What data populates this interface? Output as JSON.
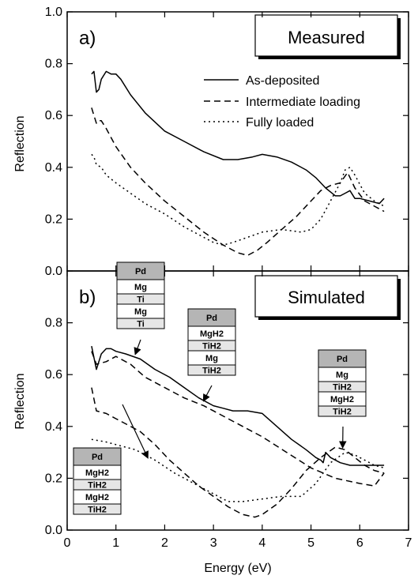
{
  "chart_data": [
    {
      "type": "line",
      "panel_label": "a)",
      "title": "Measured",
      "ylabel": "Reflection",
      "xlim": [
        0,
        7
      ],
      "ylim": [
        0.0,
        1.0
      ],
      "yticks": [
        0.0,
        0.2,
        0.4,
        0.6,
        0.8,
        1.0
      ],
      "ytick_labels": [
        "0.0",
        "0.2",
        "0.4",
        "0.6",
        "0.8",
        "1.0"
      ],
      "legend": [
        "As-deposited",
        "Intermediate loading",
        "Fully loaded"
      ],
      "series": [
        {
          "name": "As-deposited",
          "style": "solid",
          "x": [
            0.5,
            0.55,
            0.6,
            0.65,
            0.7,
            0.8,
            0.9,
            1.0,
            1.1,
            1.3,
            1.6,
            2.0,
            2.4,
            2.8,
            3.2,
            3.5,
            3.8,
            4.0,
            4.3,
            4.6,
            4.9,
            5.1,
            5.3,
            5.5,
            5.6,
            5.7,
            5.8,
            5.9,
            6.0,
            6.2,
            6.4,
            6.5
          ],
          "y": [
            0.76,
            0.77,
            0.69,
            0.7,
            0.74,
            0.77,
            0.76,
            0.76,
            0.74,
            0.68,
            0.61,
            0.54,
            0.5,
            0.46,
            0.43,
            0.43,
            0.44,
            0.45,
            0.44,
            0.42,
            0.39,
            0.36,
            0.32,
            0.29,
            0.29,
            0.3,
            0.31,
            0.28,
            0.28,
            0.27,
            0.26,
            0.28
          ]
        },
        {
          "name": "Intermediate loading",
          "style": "dashed",
          "x": [
            0.5,
            0.55,
            0.6,
            0.65,
            0.7,
            0.8,
            1.0,
            1.3,
            1.6,
            2.0,
            2.4,
            2.8,
            3.2,
            3.5,
            3.7,
            3.9,
            4.1,
            4.4,
            4.7,
            5.0,
            5.2,
            5.4,
            5.6,
            5.75,
            5.9,
            6.1,
            6.3,
            6.5
          ],
          "y": [
            0.63,
            0.6,
            0.57,
            0.58,
            0.58,
            0.55,
            0.48,
            0.4,
            0.34,
            0.27,
            0.21,
            0.15,
            0.1,
            0.07,
            0.06,
            0.08,
            0.11,
            0.16,
            0.21,
            0.27,
            0.31,
            0.33,
            0.34,
            0.38,
            0.32,
            0.27,
            0.25,
            0.23
          ]
        },
        {
          "name": "Fully loaded",
          "style": "dotted",
          "x": [
            0.5,
            0.55,
            0.6,
            0.7,
            0.8,
            1.0,
            1.3,
            1.6,
            2.0,
            2.4,
            2.8,
            3.0,
            3.2,
            3.4,
            3.7,
            4.0,
            4.4,
            4.8,
            5.0,
            5.2,
            5.4,
            5.6,
            5.7,
            5.8,
            5.9,
            6.1,
            6.3,
            6.5
          ],
          "y": [
            0.45,
            0.44,
            0.41,
            0.4,
            0.37,
            0.34,
            0.3,
            0.26,
            0.22,
            0.17,
            0.13,
            0.11,
            0.1,
            0.11,
            0.13,
            0.15,
            0.16,
            0.15,
            0.16,
            0.2,
            0.27,
            0.34,
            0.39,
            0.4,
            0.37,
            0.3,
            0.27,
            0.25
          ]
        }
      ]
    },
    {
      "type": "line",
      "panel_label": "b)",
      "title": "Simulated",
      "xlabel": "Energy (eV)",
      "ylabel": "Reflection",
      "xlim": [
        0,
        7
      ],
      "ylim": [
        0.0,
        1.0
      ],
      "xticks": [
        0,
        1,
        2,
        3,
        4,
        5,
        6,
        7
      ],
      "xtick_labels": [
        "0",
        "1",
        "2",
        "3",
        "4",
        "5",
        "6",
        "7"
      ],
      "yticks": [
        0.0,
        0.2,
        0.4,
        0.6,
        0.8
      ],
      "ytick_labels": [
        "0.0",
        "0.2",
        "0.4",
        "0.6",
        "0.8"
      ],
      "series": [
        {
          "name": "As-deposited",
          "style": "solid",
          "x": [
            0.5,
            0.6,
            0.7,
            0.8,
            0.9,
            1.0,
            1.2,
            1.5,
            1.8,
            2.1,
            2.4,
            2.7,
            3.0,
            3.2,
            3.4,
            3.7,
            4.0,
            4.3,
            4.6,
            4.9,
            5.1,
            5.2,
            5.25,
            5.3,
            5.4,
            5.6,
            5.8,
            6.0,
            6.3,
            6.5
          ],
          "y": [
            0.71,
            0.62,
            0.68,
            0.7,
            0.7,
            0.69,
            0.68,
            0.66,
            0.62,
            0.59,
            0.55,
            0.51,
            0.48,
            0.47,
            0.46,
            0.46,
            0.45,
            0.4,
            0.35,
            0.31,
            0.28,
            0.27,
            0.26,
            0.3,
            0.28,
            0.26,
            0.25,
            0.25,
            0.25,
            0.25
          ]
        },
        {
          "name": "Intermediate loading",
          "style": "dashed",
          "x": [
            0.5,
            0.6,
            0.8,
            1.0,
            1.3,
            1.6,
            2.0,
            2.4,
            2.8,
            3.0,
            3.3,
            3.6,
            4.0,
            4.5,
            5.0,
            5.5,
            6.0,
            6.3,
            6.5
          ],
          "y": [
            0.69,
            0.64,
            0.65,
            0.67,
            0.64,
            0.59,
            0.55,
            0.51,
            0.48,
            0.46,
            0.43,
            0.4,
            0.36,
            0.3,
            0.24,
            0.2,
            0.18,
            0.17,
            0.22
          ]
        },
        {
          "name": "Intermediate loading",
          "style": "dashed",
          "x": [
            0.5,
            0.6,
            0.8,
            1.0,
            1.2,
            1.5,
            1.8,
            2.1,
            2.4,
            2.7,
            3.0,
            3.3,
            3.6,
            3.85,
            4.0,
            4.3,
            4.6,
            4.9,
            5.2,
            5.5,
            5.7,
            5.9,
            6.1,
            6.3,
            6.5
          ],
          "y": [
            0.55,
            0.46,
            0.45,
            0.43,
            0.41,
            0.38,
            0.33,
            0.27,
            0.22,
            0.17,
            0.13,
            0.09,
            0.06,
            0.05,
            0.06,
            0.1,
            0.16,
            0.23,
            0.28,
            0.32,
            0.31,
            0.28,
            0.25,
            0.23,
            0.22
          ]
        },
        {
          "name": "Fully loaded",
          "style": "dotted",
          "x": [
            0.5,
            0.8,
            1.0,
            1.4,
            1.8,
            2.2,
            2.6,
            3.0,
            3.3,
            3.6,
            4.0,
            4.4,
            4.8,
            5.1,
            5.4,
            5.7,
            5.9,
            6.1,
            6.3,
            6.5
          ],
          "y": [
            0.35,
            0.34,
            0.33,
            0.31,
            0.27,
            0.22,
            0.18,
            0.14,
            0.11,
            0.11,
            0.12,
            0.13,
            0.13,
            0.18,
            0.26,
            0.3,
            0.29,
            0.27,
            0.25,
            0.24
          ]
        }
      ],
      "layer_stacks": [
        {
          "target_x": 1.4,
          "target_y": 0.68,
          "layers": [
            "Pd",
            "Mg",
            "Ti",
            "Mg",
            "Ti"
          ]
        },
        {
          "target_x": 2.8,
          "target_y": 0.5,
          "layers": [
            "Pd",
            "MgH2",
            "TiH2",
            "Mg",
            "TiH2"
          ]
        },
        {
          "target_x": 5.65,
          "target_y": 0.32,
          "layers": [
            "Pd",
            "Mg",
            "TiH2",
            "MgH2",
            "TiH2"
          ]
        },
        {
          "target_x": 1.65,
          "target_y": 0.28,
          "layers": [
            "Pd",
            "MgH2",
            "TiH2",
            "MgH2",
            "TiH2"
          ]
        }
      ]
    }
  ]
}
